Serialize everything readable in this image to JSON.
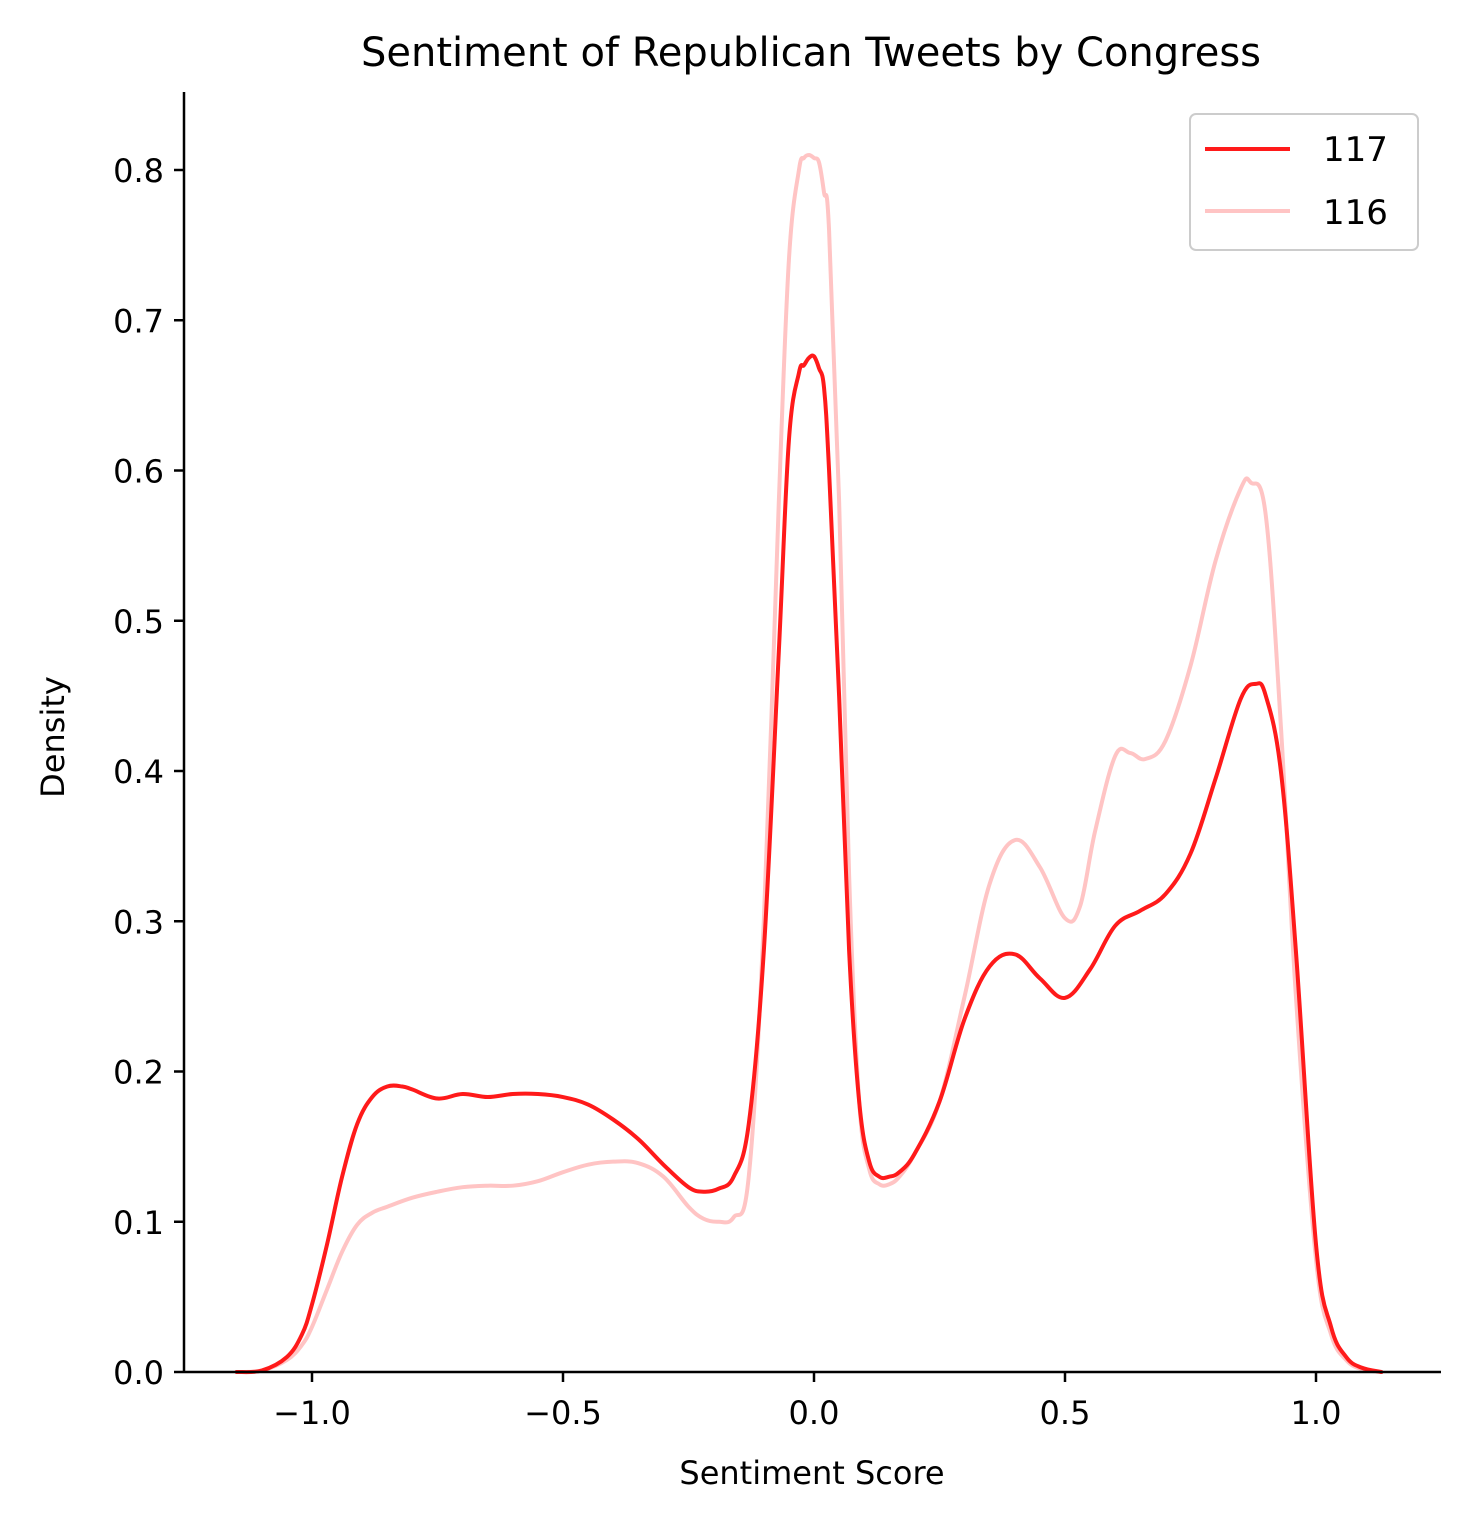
{
  "chart_data": {
    "type": "line",
    "title": "Sentiment of Republican Tweets by Congress",
    "xlabel": "Sentiment Score",
    "ylabel": "Density",
    "xlim": [
      -1.25,
      1.25
    ],
    "ylim": [
      0.0,
      0.85
    ],
    "x_ticks": [
      -1.0,
      -0.5,
      0.0,
      0.5,
      1.0
    ],
    "x_tick_labels": [
      "−1.0",
      "−0.5",
      "0.0",
      "0.5",
      "1.0"
    ],
    "y_ticks": [
      0.0,
      0.1,
      0.2,
      0.3,
      0.4,
      0.5,
      0.6,
      0.7,
      0.8
    ],
    "y_tick_labels": [
      "0.0",
      "0.1",
      "0.2",
      "0.3",
      "0.4",
      "0.5",
      "0.6",
      "0.7",
      "0.8"
    ],
    "grid": false,
    "legend_position": "top-right",
    "series": [
      {
        "name": "117",
        "color": "#ff1a1a",
        "x": [
          -1.15,
          -1.1,
          -1.05,
          -1.02,
          -1.0,
          -0.97,
          -0.94,
          -0.91,
          -0.88,
          -0.85,
          -0.82,
          -0.8,
          -0.75,
          -0.7,
          -0.65,
          -0.6,
          -0.55,
          -0.5,
          -0.45,
          -0.4,
          -0.35,
          -0.3,
          -0.25,
          -0.22,
          -0.19,
          -0.16,
          -0.13,
          -0.1,
          -0.07,
          -0.05,
          -0.03,
          -0.02,
          -0.01,
          0.0,
          0.01,
          0.02,
          0.03,
          0.05,
          0.07,
          0.09,
          0.11,
          0.13,
          0.15,
          0.17,
          0.2,
          0.25,
          0.3,
          0.35,
          0.4,
          0.45,
          0.5,
          0.55,
          0.6,
          0.65,
          0.7,
          0.75,
          0.8,
          0.85,
          0.88,
          0.9,
          0.93,
          0.96,
          1.0,
          1.03,
          1.06,
          1.09,
          1.13
        ],
        "y": [
          0.0,
          0.001,
          0.01,
          0.025,
          0.045,
          0.085,
          0.13,
          0.165,
          0.183,
          0.19,
          0.19,
          0.188,
          0.182,
          0.185,
          0.183,
          0.185,
          0.185,
          0.183,
          0.178,
          0.168,
          0.155,
          0.138,
          0.123,
          0.12,
          0.122,
          0.13,
          0.165,
          0.28,
          0.48,
          0.62,
          0.665,
          0.67,
          0.675,
          0.676,
          0.668,
          0.655,
          0.6,
          0.45,
          0.28,
          0.18,
          0.14,
          0.13,
          0.13,
          0.133,
          0.145,
          0.18,
          0.235,
          0.27,
          0.278,
          0.262,
          0.249,
          0.268,
          0.297,
          0.307,
          0.318,
          0.345,
          0.395,
          0.448,
          0.458,
          0.45,
          0.4,
          0.28,
          0.085,
          0.03,
          0.01,
          0.003,
          0.0
        ]
      },
      {
        "name": "116",
        "color": "#ffc4c4",
        "x": [
          -1.15,
          -1.1,
          -1.05,
          -1.02,
          -1.0,
          -0.97,
          -0.94,
          -0.91,
          -0.88,
          -0.85,
          -0.8,
          -0.75,
          -0.7,
          -0.65,
          -0.6,
          -0.55,
          -0.5,
          -0.45,
          -0.4,
          -0.35,
          -0.3,
          -0.25,
          -0.22,
          -0.19,
          -0.16,
          -0.13,
          -0.1,
          -0.07,
          -0.05,
          -0.03,
          -0.02,
          -0.01,
          0.0,
          0.01,
          0.02,
          0.03,
          0.05,
          0.07,
          0.09,
          0.11,
          0.13,
          0.15,
          0.17,
          0.2,
          0.25,
          0.3,
          0.35,
          0.4,
          0.45,
          0.5,
          0.53,
          0.56,
          0.6,
          0.63,
          0.66,
          0.7,
          0.75,
          0.8,
          0.85,
          0.87,
          0.9,
          0.93,
          0.96,
          1.0,
          1.03,
          1.06,
          1.09,
          1.13
        ],
        "y": [
          0.0,
          0.001,
          0.008,
          0.018,
          0.03,
          0.055,
          0.08,
          0.098,
          0.106,
          0.11,
          0.116,
          0.12,
          0.123,
          0.124,
          0.124,
          0.127,
          0.133,
          0.138,
          0.14,
          0.139,
          0.13,
          0.11,
          0.102,
          0.1,
          0.103,
          0.13,
          0.3,
          0.58,
          0.74,
          0.8,
          0.808,
          0.81,
          0.808,
          0.805,
          0.785,
          0.76,
          0.58,
          0.33,
          0.18,
          0.135,
          0.125,
          0.125,
          0.13,
          0.145,
          0.18,
          0.25,
          0.325,
          0.354,
          0.336,
          0.302,
          0.31,
          0.36,
          0.41,
          0.412,
          0.408,
          0.42,
          0.47,
          0.54,
          0.588,
          0.592,
          0.57,
          0.43,
          0.25,
          0.075,
          0.025,
          0.008,
          0.002,
          0.0
        ]
      }
    ]
  }
}
